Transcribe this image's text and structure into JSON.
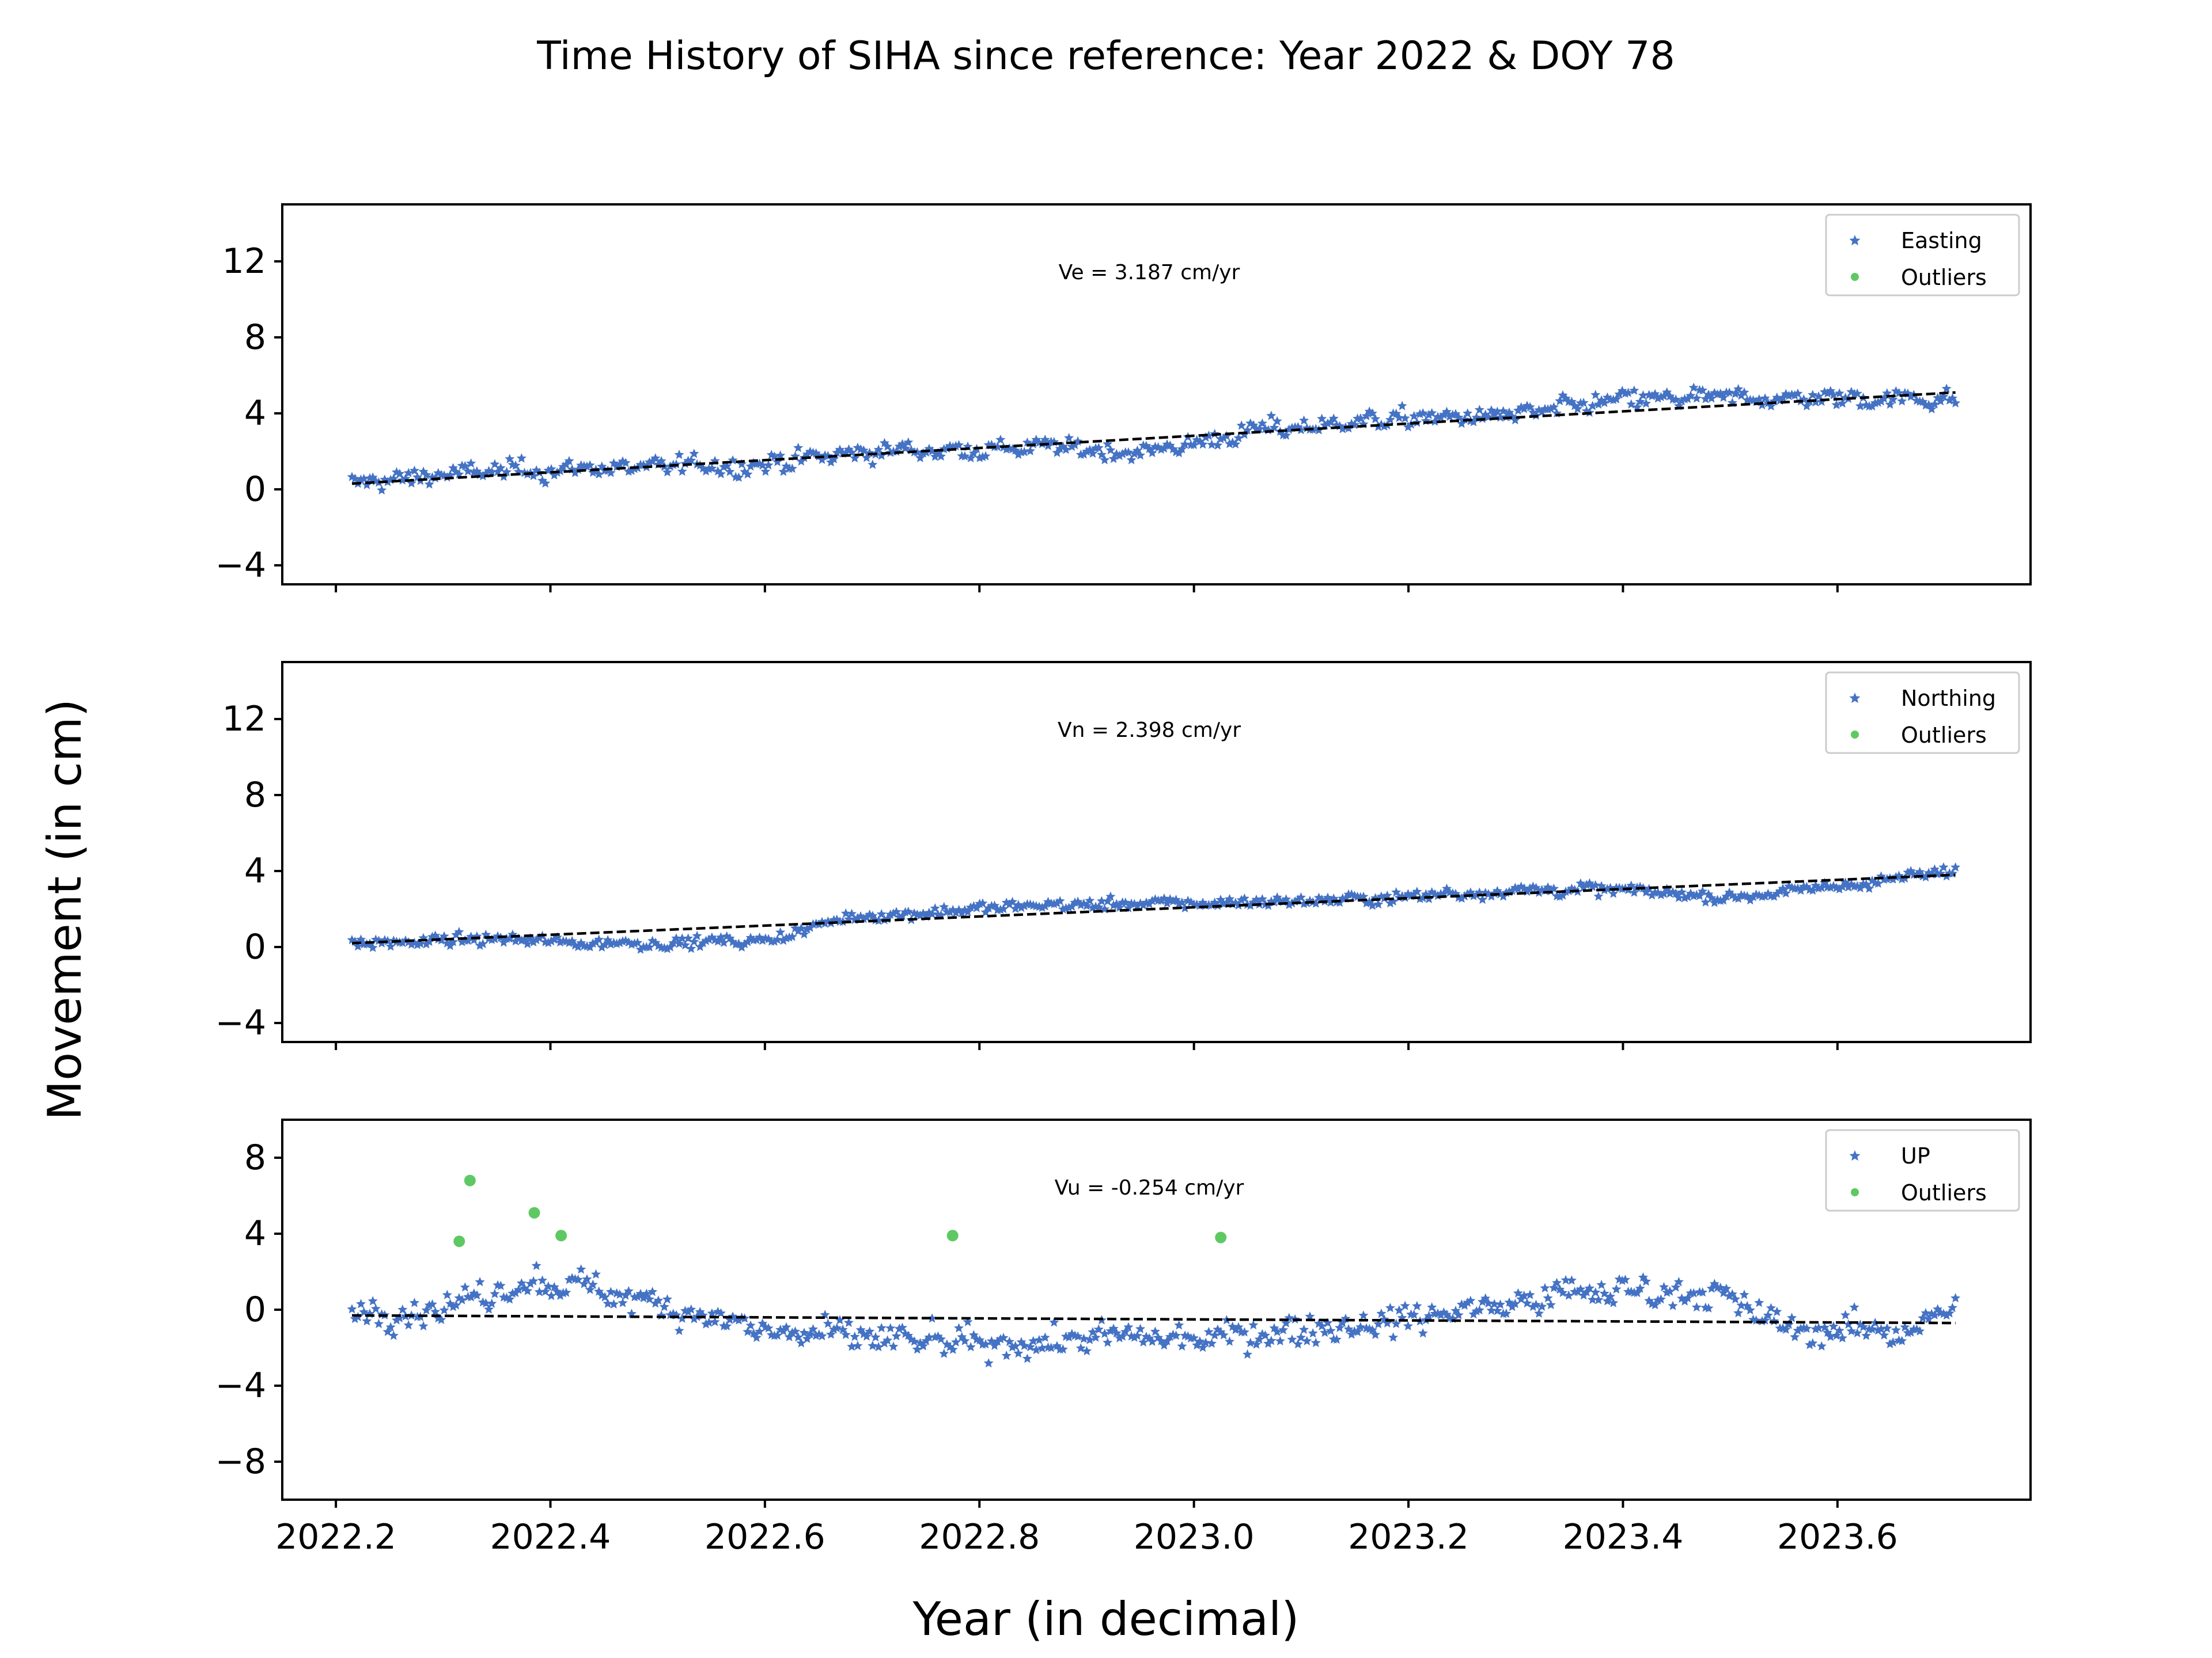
{
  "figure": {
    "title": "Time History of SIHA since reference: Year 2022 & DOY 78",
    "xlabel": "Year (in decimal)",
    "ylabel": "Movement (in cm)"
  },
  "colors": {
    "data": "#4472c4",
    "outliers": "#5ec962",
    "trend": "#000000"
  },
  "chart_data": [
    {
      "type": "scatter",
      "component": "east",
      "velocity_text": "Ve =  3.187 cm/yr",
      "legend": [
        "Easting",
        "Outliers"
      ],
      "legend_position": "top-right",
      "xlim": [
        2022.15,
        2023.78
      ],
      "ylim": [
        -5,
        15
      ],
      "yticks": [
        -4,
        0,
        4,
        8,
        12
      ],
      "xticks": [
        2022.2,
        2022.4,
        2022.6,
        2022.8,
        2023.0,
        2023.2,
        2023.4,
        2023.6
      ],
      "x_range": [
        2022.215,
        2023.71
      ],
      "trend": {
        "x": [
          2022.215,
          2023.71
        ],
        "y": [
          0.3,
          5.1
        ]
      },
      "profile": [
        [
          2022.215,
          0.3
        ],
        [
          2022.3,
          0.8
        ],
        [
          2022.38,
          1.0
        ],
        [
          2022.5,
          1.2
        ],
        [
          2022.6,
          1.3
        ],
        [
          2022.7,
          2.0
        ],
        [
          2022.85,
          2.2
        ],
        [
          2022.95,
          2.0
        ],
        [
          2023.0,
          2.4
        ],
        [
          2023.05,
          3.0
        ],
        [
          2023.15,
          3.6
        ],
        [
          2023.3,
          3.9
        ],
        [
          2023.4,
          4.7
        ],
        [
          2023.5,
          4.8
        ],
        [
          2023.6,
          4.8
        ],
        [
          2023.71,
          4.8
        ]
      ],
      "noise": 0.5,
      "outliers": []
    },
    {
      "type": "scatter",
      "component": "north",
      "velocity_text": "Vn =  2.398 cm/yr",
      "legend": [
        "Northing",
        "Outliers"
      ],
      "legend_position": "top-right",
      "xlim": [
        2022.15,
        2023.78
      ],
      "ylim": [
        -5,
        15
      ],
      "yticks": [
        -4,
        0,
        4,
        8,
        12
      ],
      "xticks": [
        2022.2,
        2022.4,
        2022.6,
        2022.8,
        2023.0,
        2023.2,
        2023.4,
        2023.6
      ],
      "x_range": [
        2022.215,
        2023.71
      ],
      "trend": {
        "x": [
          2022.215,
          2023.71
        ],
        "y": [
          0.2,
          3.8
        ]
      },
      "profile": [
        [
          2022.215,
          0.2
        ],
        [
          2022.35,
          0.4
        ],
        [
          2022.45,
          0.2
        ],
        [
          2022.6,
          0.3
        ],
        [
          2022.68,
          1.6
        ],
        [
          2022.75,
          1.8
        ],
        [
          2022.85,
          2.2
        ],
        [
          2023.0,
          2.3
        ],
        [
          2023.15,
          2.5
        ],
        [
          2023.3,
          3.0
        ],
        [
          2023.4,
          3.0
        ],
        [
          2023.5,
          2.6
        ],
        [
          2023.6,
          3.2
        ],
        [
          2023.71,
          4.0
        ]
      ],
      "noise": 0.3,
      "outliers": []
    },
    {
      "type": "scatter",
      "component": "up",
      "velocity_text": "Vu = -0.254 cm/yr",
      "legend": [
        "UP",
        "Outliers"
      ],
      "legend_position": "top-right",
      "xlim": [
        2022.15,
        2023.78
      ],
      "ylim": [
        -10,
        10
      ],
      "yticks": [
        -8,
        -4,
        0,
        4,
        8
      ],
      "xticks": [
        2022.2,
        2022.4,
        2022.6,
        2022.8,
        2023.0,
        2023.2,
        2023.4,
        2023.6
      ],
      "xticklabels": [
        "2022.2",
        "2022.4",
        "2022.6",
        "2022.8",
        "2023.0",
        "2023.2",
        "2023.4",
        "2023.6"
      ],
      "x_range": [
        2022.215,
        2023.71
      ],
      "trend": {
        "x": [
          2022.215,
          2023.71
        ],
        "y": [
          -0.3,
          -0.7
        ]
      },
      "profile": [
        [
          2022.215,
          0.0
        ],
        [
          2022.3,
          0.0
        ],
        [
          2022.38,
          1.5
        ],
        [
          2022.45,
          1.0
        ],
        [
          2022.53,
          0.0
        ],
        [
          2022.6,
          -1.2
        ],
        [
          2022.7,
          -1.5
        ],
        [
          2022.8,
          -2.0
        ],
        [
          2022.9,
          -1.5
        ],
        [
          2023.0,
          -1.5
        ],
        [
          2023.1,
          -1.0
        ],
        [
          2023.2,
          -0.5
        ],
        [
          2023.3,
          0.5
        ],
        [
          2023.38,
          1.0
        ],
        [
          2023.48,
          1.0
        ],
        [
          2023.55,
          -1.0
        ],
        [
          2023.65,
          -1.2
        ],
        [
          2023.71,
          0.0
        ]
      ],
      "noise": 0.8,
      "outliers": [
        [
          2022.315,
          3.6
        ],
        [
          2022.325,
          6.8
        ],
        [
          2022.385,
          5.1
        ],
        [
          2022.41,
          3.9
        ],
        [
          2022.775,
          3.9
        ],
        [
          2023.025,
          3.8
        ]
      ]
    }
  ]
}
